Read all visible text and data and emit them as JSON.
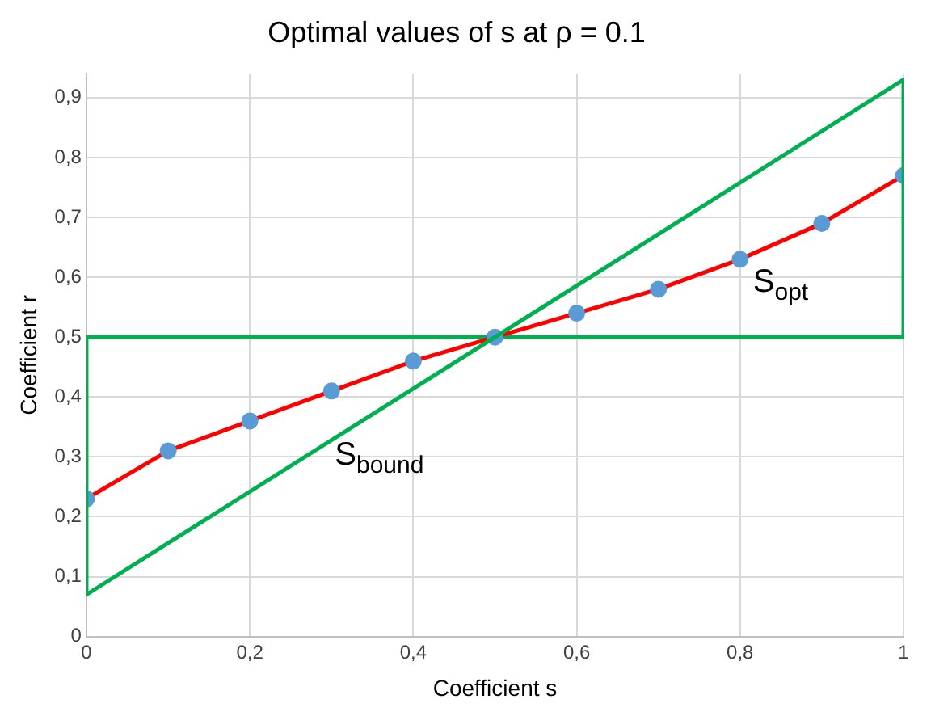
{
  "chart_data": {
    "type": "line",
    "title": "Optimal values of s at ρ = 0.1",
    "xlabel": "Coefficient s",
    "ylabel": "Coefficient r",
    "xlim": [
      0,
      1
    ],
    "xticks": [
      0,
      {
        "value": 0.2,
        "label": "0,2"
      },
      {
        "value": 0.4,
        "label": "0,4"
      },
      {
        "value": 0.6,
        "label": "0,6"
      },
      {
        "value": 0.8,
        "label": "0,8"
      },
      1
    ],
    "ylim": [
      0,
      0.94
    ],
    "yticks": [
      0,
      {
        "value": 0.1,
        "label": "0,1"
      },
      {
        "value": 0.2,
        "label": "0,2"
      },
      {
        "value": 0.3,
        "label": "0,3"
      },
      {
        "value": 0.4,
        "label": "0,4"
      },
      {
        "value": 0.5,
        "label": "0,5"
      },
      {
        "value": 0.6,
        "label": "0,6"
      },
      {
        "value": 0.7,
        "label": "0,7"
      },
      {
        "value": 0.8,
        "label": "0,8"
      },
      {
        "value": 0.9,
        "label": "0,9"
      }
    ],
    "grid": true,
    "legend": false,
    "series": [
      {
        "name": "S$_{opt}$",
        "color": "#ff0000",
        "marker": "circle",
        "colors": [
          "#5b9bd5",
          "#5b9bd5",
          "#5b9bd5",
          "#5b9bd5",
          "#5b9bd5",
          "#5b9bd5",
          "#5b9bd5",
          "#5b9bd5",
          "#5b9bd5",
          "#5b9bd5",
          "#5b9bd5"
        ],
        "x": [
          0,
          0.1,
          0.2,
          0.3,
          0.4,
          0.5,
          0.6,
          0.7,
          0.8,
          0.9,
          1
        ],
        "values": [
          0.23,
          0.31,
          0.36,
          0.41,
          0.46,
          0.5,
          0.54,
          0.58,
          0.63,
          0.69,
          0.77
        ]
      },
      {
        "name": "S$_{bound}$",
        "color": "#00b050",
        "marker": "none",
        "x": [
          0,
          0,
          1,
          1
        ],
        "values": [
          0.5,
          0.07,
          0.93,
          0.5
        ]
      }
    ],
    "ref_lines": [
      {
        "axis": "y",
        "value": 0.5,
        "color": "#00b050"
      }
    ]
  }
}
